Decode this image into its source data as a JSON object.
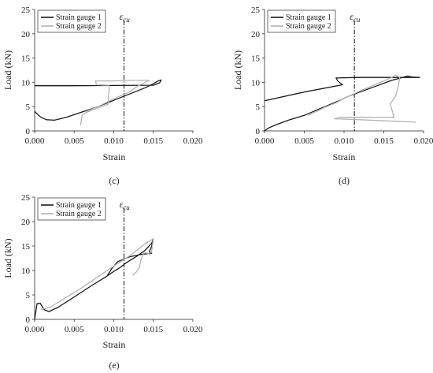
{
  "chart_data": [
    {
      "type": "line",
      "panel_label": "(c)",
      "xlabel": "Strain",
      "ylabel": "Load (kN)",
      "xlim": [
        0,
        0.02
      ],
      "ylim": [
        0,
        25
      ],
      "x_ticks": [
        "0.000",
        "0.005",
        "0.010",
        "0.015",
        "0.020"
      ],
      "y_ticks": [
        "0",
        "5",
        "10",
        "15",
        "20",
        "25"
      ],
      "grid": false,
      "legend": "top-left",
      "reference_line": {
        "label": "ε",
        "sub": "cu",
        "x": 0.0113
      },
      "series": [
        {
          "name": "Strain gauge 1",
          "color": "#1a1a1a",
          "points": [
            [
              0.0,
              4.0
            ],
            [
              0.0008,
              2.8
            ],
            [
              0.0015,
              2.3
            ],
            [
              0.0025,
              2.2
            ],
            [
              0.004,
              2.8
            ],
            [
              0.006,
              3.9
            ],
            [
              0.008,
              5.0
            ],
            [
              0.01,
              6.3
            ],
            [
              0.012,
              7.6
            ],
            [
              0.014,
              8.9
            ],
            [
              0.015,
              9.7
            ],
            [
              0.0155,
              10.2
            ],
            [
              0.016,
              10.5
            ],
            [
              0.0158,
              9.9
            ],
            [
              0.015,
              9.4
            ],
            [
              0.01,
              9.35
            ],
            [
              0.005,
              9.3
            ],
            [
              0.0,
              9.3
            ]
          ]
        },
        {
          "name": "Strain gauge 2",
          "color": "#b3b3b3",
          "points": [
            [
              0.0058,
              1.2
            ],
            [
              0.006,
              3.2
            ],
            [
              0.0065,
              3.8
            ],
            [
              0.0085,
              5.0
            ],
            [
              0.0093,
              5.5
            ],
            [
              0.0093,
              7.0
            ],
            [
              0.0094,
              8.0
            ],
            [
              0.0094,
              9.4
            ],
            [
              0.0078,
              9.5
            ],
            [
              0.0077,
              10.3
            ],
            [
              0.01,
              10.3
            ],
            [
              0.012,
              10.4
            ],
            [
              0.0145,
              10.4
            ],
            [
              0.013,
              9.2
            ],
            [
              0.012,
              8.0
            ],
            [
              0.01,
              6.6
            ],
            [
              0.008,
              5.0
            ],
            [
              0.0065,
              4.0
            ]
          ]
        }
      ]
    },
    {
      "type": "line",
      "panel_label": "(d)",
      "xlabel": "Strain",
      "ylabel": "Load (kN)",
      "xlim": [
        0,
        0.02
      ],
      "ylim": [
        0,
        25
      ],
      "x_ticks": [
        "0.000",
        "0.005",
        "0.010",
        "0.015",
        "0.020"
      ],
      "y_ticks": [
        "0",
        "5",
        "10",
        "15",
        "20",
        "25"
      ],
      "grid": false,
      "legend": "top-left",
      "reference_line": {
        "label": "ε",
        "sub": "cu",
        "x": 0.0113
      },
      "series": [
        {
          "name": "Strain gauge 1",
          "color": "#1a1a1a",
          "points": [
            [
              0.0,
              0.0
            ],
            [
              0.0005,
              0.6
            ],
            [
              0.0015,
              1.3
            ],
            [
              0.003,
              2.2
            ],
            [
              0.005,
              3.2
            ],
            [
              0.007,
              4.6
            ],
            [
              0.0095,
              6.3
            ],
            [
              0.0105,
              7.1
            ],
            [
              0.012,
              8.0
            ],
            [
              0.014,
              9.2
            ],
            [
              0.016,
              10.4
            ],
            [
              0.018,
              11.3
            ],
            [
              0.0185,
              11.1
            ],
            [
              0.0195,
              11.0
            ],
            [
              0.015,
              11.0
            ],
            [
              0.012,
              11.0
            ],
            [
              0.009,
              10.9
            ],
            [
              0.0092,
              10.3
            ],
            [
              0.0098,
              9.5
            ],
            [
              0.005,
              8.0
            ],
            [
              0.0,
              6.2
            ]
          ]
        },
        {
          "name": "Strain gauge 2",
          "color": "#b3b3b3",
          "points": [
            [
              0.0055,
              3.2
            ],
            [
              0.0075,
              4.8
            ],
            [
              0.009,
              5.8
            ],
            [
              0.01,
              6.7
            ],
            [
              0.012,
              8.2
            ],
            [
              0.014,
              9.6
            ],
            [
              0.016,
              11.0
            ],
            [
              0.0165,
              11.5
            ],
            [
              0.017,
              11.0
            ],
            [
              0.0168,
              9.0
            ],
            [
              0.0165,
              7.2
            ],
            [
              0.016,
              6.0
            ],
            [
              0.0158,
              5.5
            ],
            [
              0.016,
              4.5
            ],
            [
              0.0163,
              2.8
            ],
            [
              0.013,
              2.8
            ],
            [
              0.0095,
              2.8
            ],
            [
              0.0088,
              2.5
            ],
            [
              0.012,
              2.3
            ],
            [
              0.019,
              1.8
            ]
          ]
        }
      ]
    },
    {
      "type": "line",
      "panel_label": "(e)",
      "xlabel": "Strain",
      "ylabel": "Load (kN)",
      "xlim": [
        0,
        0.02
      ],
      "ylim": [
        0,
        25
      ],
      "x_ticks": [
        "0.000",
        "0.005",
        "0.010",
        "0.015",
        "0.020"
      ],
      "y_ticks": [
        "0",
        "5",
        "10",
        "15",
        "20",
        "25"
      ],
      "grid": false,
      "legend": "top-left",
      "reference_line": {
        "label": "ε",
        "sub": "cu",
        "x": 0.0113
      },
      "series": [
        {
          "name": "Strain gauge 1",
          "color": "#1a1a1a",
          "points": [
            [
              0.0,
              0.0
            ],
            [
              0.0003,
              3.2
            ],
            [
              0.0007,
              3.3
            ],
            [
              0.0012,
              2.0
            ],
            [
              0.0018,
              1.6
            ],
            [
              0.003,
              2.5
            ],
            [
              0.005,
              4.6
            ],
            [
              0.007,
              6.7
            ],
            [
              0.009,
              8.7
            ],
            [
              0.01,
              9.8
            ],
            [
              0.0108,
              10.6
            ],
            [
              0.0115,
              11.5
            ],
            [
              0.012,
              12.0
            ],
            [
              0.013,
              13.0
            ],
            [
              0.014,
              14.2
            ],
            [
              0.0148,
              15.6
            ],
            [
              0.015,
              16.4
            ],
            [
              0.0148,
              15.0
            ],
            [
              0.0145,
              13.8
            ],
            [
              0.0148,
              13.5
            ],
            [
              0.0135,
              13.3
            ],
            [
              0.012,
              12.8
            ],
            [
              0.0105,
              11.8
            ],
            [
              0.0098,
              10.5
            ],
            [
              0.0092,
              9.0
            ]
          ]
        },
        {
          "name": "Strain gauge 2",
          "color": "#b3b3b3",
          "points": [
            [
              0.0008,
              2.0
            ],
            [
              0.002,
              2.5
            ],
            [
              0.004,
              4.5
            ],
            [
              0.006,
              6.5
            ],
            [
              0.008,
              8.7
            ],
            [
              0.01,
              10.9
            ],
            [
              0.012,
              13.0
            ],
            [
              0.014,
              15.5
            ],
            [
              0.015,
              16.5
            ],
            [
              0.0148,
              14.0
            ],
            [
              0.0145,
              13.3
            ],
            [
              0.0138,
              13.8
            ],
            [
              0.0134,
              12.0
            ],
            [
              0.0132,
              10.5
            ],
            [
              0.0128,
              9.6
            ],
            [
              0.0124,
              9.0
            ]
          ]
        }
      ]
    }
  ]
}
